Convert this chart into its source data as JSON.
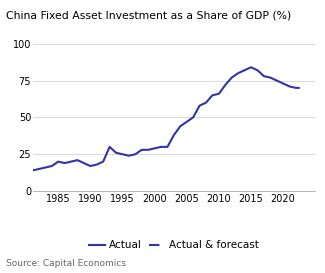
{
  "title": "China Fixed Asset Investment as a Share of GDP (%)",
  "source": "Source: Capital Economics",
  "line_color": "#3333aa",
  "xlim": [
    1981,
    2025
  ],
  "ylim": [
    0,
    100
  ],
  "yticks": [
    0,
    25,
    50,
    75,
    100
  ],
  "xticks": [
    1985,
    1990,
    1995,
    2000,
    2005,
    2010,
    2015,
    2020
  ],
  "actual_x": [
    1981,
    1982,
    1983,
    1984,
    1985,
    1986,
    1987,
    1988,
    1989,
    1990,
    1991,
    1992,
    1993,
    1994,
    1995,
    1996,
    1997,
    1998,
    1999,
    2000,
    2001,
    2002,
    2003,
    2004,
    2005,
    2006,
    2007,
    2008,
    2009,
    2010,
    2011,
    2012,
    2013,
    2014,
    2015,
    2016,
    2017,
    2018,
    2019,
    2020,
    2021,
    2022,
    2023
  ],
  "actual_y": [
    14,
    15,
    16,
    17,
    20,
    19,
    20,
    21,
    19,
    17,
    18,
    20,
    30,
    26,
    25,
    24,
    25,
    28,
    28,
    29,
    30,
    30,
    38,
    44,
    47,
    50,
    58,
    60,
    65,
    66,
    72,
    77,
    80,
    82,
    84,
    82,
    78,
    77,
    75,
    73,
    71,
    70,
    70
  ],
  "split_year": 2021,
  "title_fontsize": 7.8,
  "tick_fontsize": 7.0,
  "legend_fontsize": 7.5,
  "source_fontsize": 6.5,
  "linewidth": 1.5,
  "grid_color": "#cccccc",
  "bottom_color": "#aaaaaa"
}
